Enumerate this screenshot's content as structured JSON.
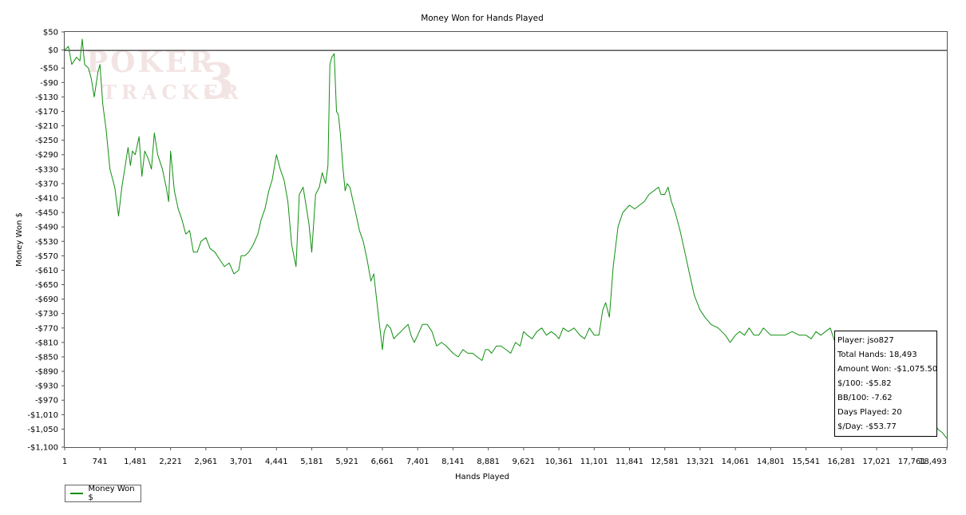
{
  "chart_data": {
    "type": "line",
    "title": "Money Won for Hands Played",
    "xlabel": "Hands Played",
    "ylabel": "Money Won $",
    "xlim": [
      1,
      18493
    ],
    "ylim": [
      -1100,
      50
    ],
    "x_ticks": [
      1,
      741,
      1481,
      2221,
      2961,
      3701,
      4441,
      5181,
      5921,
      6661,
      7401,
      8141,
      8881,
      9621,
      10361,
      11101,
      11841,
      12581,
      13321,
      14061,
      14801,
      15541,
      16281,
      17021,
      17761,
      18493
    ],
    "x_tick_labels": [
      "1",
      "741",
      "1,481",
      "2,221",
      "2,961",
      "3,701",
      "4,441",
      "5,181",
      "5,921",
      "6,661",
      "7,401",
      "8,141",
      "8,881",
      "9,621",
      "10,361",
      "11,101",
      "11,841",
      "12,581",
      "13,321",
      "14,061",
      "14,801",
      "15,541",
      "16,281",
      "17,021",
      "17,761",
      "18,493"
    ],
    "y_ticks": [
      50,
      0,
      -50,
      -90,
      -130,
      -170,
      -210,
      -250,
      -290,
      -330,
      -370,
      -410,
      -450,
      -490,
      -530,
      -570,
      -610,
      -650,
      -690,
      -730,
      -770,
      -810,
      -850,
      -890,
      -930,
      -970,
      -1010,
      -1050,
      -1100
    ],
    "y_tick_labels": [
      "$50",
      "$0",
      "-$50",
      "-$90",
      "-$130",
      "-$170",
      "-$210",
      "-$250",
      "-$290",
      "-$330",
      "-$370",
      "-$410",
      "-$450",
      "-$490",
      "-$530",
      "-$570",
      "-$610",
      "-$650",
      "-$690",
      "-$730",
      "-$770",
      "-$810",
      "-$850",
      "-$890",
      "-$930",
      "-$970",
      "-$1,010",
      "-$1,050",
      "-$1,100"
    ],
    "reference_line": 0,
    "grid": false,
    "legend_position": "bottom-left",
    "series": [
      {
        "name": "Money Won $",
        "color": "#109010",
        "x": [
          1,
          80,
          150,
          250,
          320,
          370,
          420,
          500,
          560,
          620,
          700,
          741,
          800,
          870,
          950,
          1050,
          1130,
          1200,
          1260,
          1330,
          1380,
          1420,
          1481,
          1560,
          1620,
          1680,
          1750,
          1820,
          1880,
          1950,
          2050,
          2130,
          2180,
          2221,
          2300,
          2380,
          2460,
          2540,
          2620,
          2700,
          2780,
          2860,
          2961,
          3050,
          3150,
          3250,
          3350,
          3450,
          3550,
          3650,
          3701,
          3780,
          3860,
          3950,
          4050,
          4120,
          4200,
          4280,
          4350,
          4441,
          4520,
          4600,
          4680,
          4760,
          4850,
          4920,
          5000,
          5060,
          5120,
          5181,
          5260,
          5340,
          5400,
          5470,
          5520,
          5560,
          5600,
          5650,
          5700,
          5740,
          5780,
          5830,
          5880,
          5921,
          5980,
          6030,
          6100,
          6180,
          6260,
          6340,
          6420,
          6480,
          6540,
          6600,
          6661,
          6700,
          6760,
          6830,
          6900,
          6970,
          7050,
          7120,
          7200,
          7260,
          7330,
          7401,
          7500,
          7600,
          7700,
          7800,
          7900,
          8000,
          8141,
          8250,
          8350,
          8450,
          8550,
          8650,
          8750,
          8820,
          8881,
          8950,
          9050,
          9150,
          9250,
          9350,
          9450,
          9550,
          9621,
          9700,
          9800,
          9900,
          10000,
          10100,
          10200,
          10300,
          10361,
          10450,
          10560,
          10680,
          10800,
          10900,
          11000,
          11101,
          11200,
          11280,
          11340,
          11420,
          11500,
          11600,
          11700,
          11841,
          11950,
          12050,
          12150,
          12250,
          12350,
          12450,
          12500,
          12581,
          12650,
          12720,
          12800,
          12900,
          13000,
          13100,
          13200,
          13321,
          13420,
          13550,
          13700,
          13850,
          13950,
          14061,
          14150,
          14250,
          14350,
          14450,
          14550,
          14650,
          14801,
          14950,
          15100,
          15250,
          15400,
          15541,
          15650,
          15750,
          15850,
          15950,
          16050,
          16150,
          16281,
          16350,
          16500,
          16650,
          16800,
          16950,
          17021,
          17150,
          17300,
          17450,
          17600,
          17761,
          17900,
          18050,
          18200,
          18300,
          18400,
          18493
        ],
        "y": [
          0,
          10,
          -40,
          -20,
          -30,
          30,
          -40,
          -50,
          -80,
          -130,
          -60,
          -40,
          -150,
          -220,
          -330,
          -380,
          -460,
          -380,
          -330,
          -270,
          -320,
          -280,
          -290,
          -240,
          -350,
          -280,
          -300,
          -330,
          -230,
          -290,
          -330,
          -380,
          -420,
          -280,
          -390,
          -440,
          -470,
          -510,
          -500,
          -560,
          -560,
          -530,
          -520,
          -550,
          -560,
          -580,
          -600,
          -590,
          -620,
          -610,
          -570,
          -570,
          -560,
          -540,
          -510,
          -470,
          -440,
          -390,
          -360,
          -290,
          -330,
          -360,
          -420,
          -540,
          -600,
          -400,
          -380,
          -430,
          -480,
          -560,
          -400,
          -380,
          -340,
          -370,
          -320,
          -40,
          -20,
          -10,
          -170,
          -180,
          -230,
          -320,
          -390,
          -370,
          -380,
          -410,
          -450,
          -500,
          -530,
          -580,
          -640,
          -620,
          -690,
          -760,
          -830,
          -780,
          -760,
          -770,
          -800,
          -790,
          -780,
          -770,
          -760,
          -790,
          -810,
          -790,
          -760,
          -760,
          -780,
          -820,
          -810,
          -820,
          -840,
          -850,
          -830,
          -840,
          -840,
          -850,
          -860,
          -830,
          -830,
          -840,
          -820,
          -820,
          -830,
          -840,
          -810,
          -820,
          -780,
          -790,
          -800,
          -780,
          -770,
          -790,
          -780,
          -790,
          -800,
          -770,
          -780,
          -770,
          -790,
          -800,
          -770,
          -790,
          -790,
          -720,
          -700,
          -740,
          -600,
          -490,
          -450,
          -430,
          -440,
          -430,
          -420,
          -400,
          -390,
          -380,
          -400,
          -400,
          -380,
          -420,
          -450,
          -500,
          -560,
          -620,
          -680,
          -720,
          -740,
          -760,
          -770,
          -790,
          -810,
          -790,
          -780,
          -790,
          -770,
          -790,
          -790,
          -770,
          -790,
          -790,
          -790,
          -780,
          -790,
          -790,
          -800,
          -780,
          -790,
          -780,
          -770,
          -810,
          -820,
          -830,
          -850,
          -870,
          -880,
          -900,
          -920,
          -930,
          -950,
          -970,
          -990,
          -1010,
          -1020,
          -1000,
          -1020,
          -1050,
          -1060,
          -1075.5
        ]
      }
    ]
  },
  "stats": {
    "player": "Player: jso827",
    "total_hands": "Total Hands: 18,493",
    "amount_won": "Amount Won: -$1,075.50",
    "per_100": "$/100: -$5.82",
    "bb_per_100": "BB/100: -7.62",
    "days_played": "Days Played: 20",
    "per_day": "$/Day: -$53.77"
  },
  "legend": {
    "label": "Money Won $"
  },
  "watermark": {
    "line1": "POKER",
    "line2": "TRACKER",
    "mark": "3"
  }
}
